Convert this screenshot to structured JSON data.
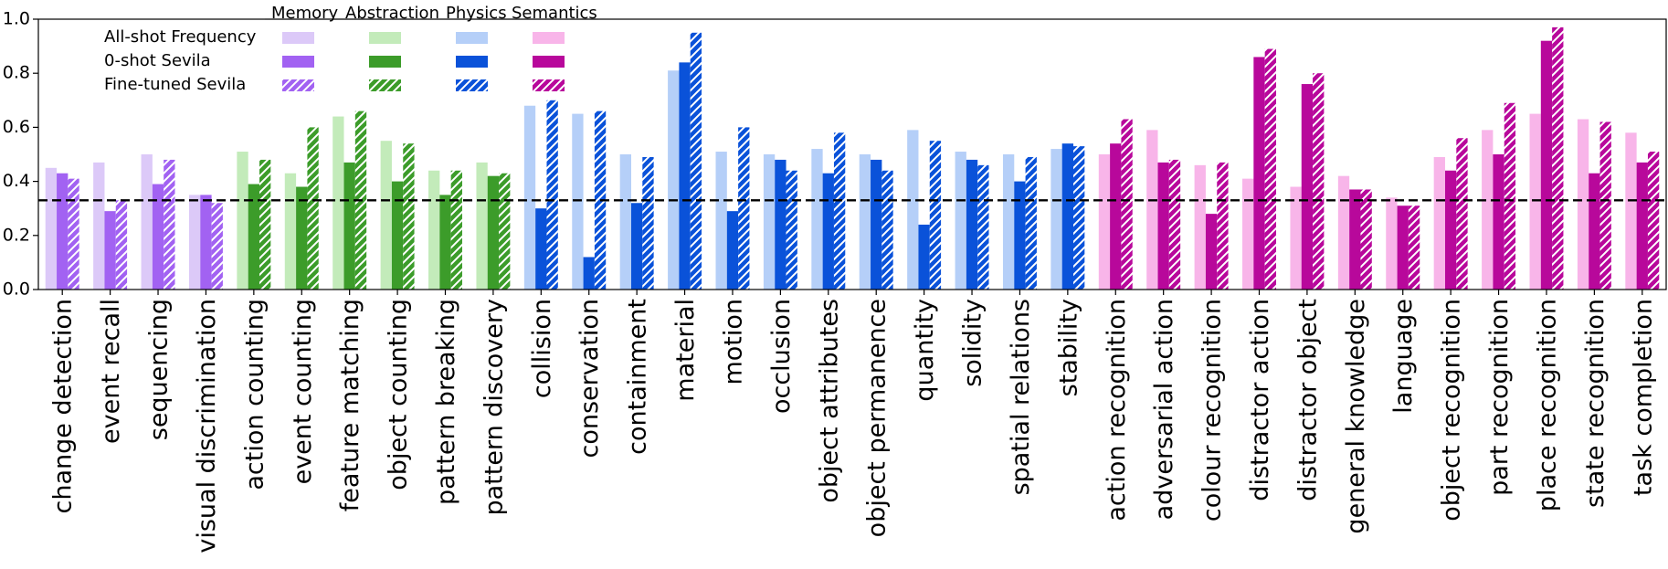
{
  "chart_data": {
    "type": "bar",
    "series": [
      {
        "name": "All-shot Frequency",
        "values": [
          0.45,
          0.47,
          0.5,
          0.35,
          0.51,
          0.43,
          0.64,
          0.55,
          0.44,
          0.47,
          0.68,
          0.65,
          0.5,
          0.81,
          0.51,
          0.5,
          0.52,
          0.5,
          0.59,
          0.51,
          0.5,
          0.52,
          0.5,
          0.59,
          0.46,
          0.41,
          0.38,
          0.42,
          0.34,
          0.49,
          0.59,
          0.65,
          0.63,
          0.58
        ]
      },
      {
        "name": "0-shot Sevila",
        "values": [
          0.43,
          0.29,
          0.39,
          0.35,
          0.39,
          0.38,
          0.47,
          0.4,
          0.35,
          0.42,
          0.3,
          0.12,
          0.32,
          0.84,
          0.29,
          0.48,
          0.43,
          0.48,
          0.24,
          0.48,
          0.4,
          0.54,
          0.54,
          0.47,
          0.28,
          0.86,
          0.76,
          0.37,
          0.31,
          0.44,
          0.5,
          0.92,
          0.43,
          0.47
        ]
      },
      {
        "name": "Fine-tuned Sevila",
        "values": [
          0.41,
          0.33,
          0.48,
          0.32,
          0.48,
          0.6,
          0.66,
          0.54,
          0.44,
          0.43,
          0.7,
          0.66,
          0.49,
          0.95,
          0.6,
          0.44,
          0.58,
          0.44,
          0.55,
          0.46,
          0.49,
          0.53,
          0.63,
          0.48,
          0.47,
          0.89,
          0.8,
          0.37,
          0.31,
          0.56,
          0.69,
          0.97,
          0.62,
          0.51
        ]
      }
    ],
    "groups": [
      {
        "name": "Memory",
        "colors": [
          "#dcc9f8",
          "#a262f2",
          "#a262f2"
        ],
        "categories": [
          "change detection",
          "event recall",
          "sequencing",
          "visual discrimination"
        ]
      },
      {
        "name": "Abstraction",
        "colors": [
          "#c3ebba",
          "#3c9c2a",
          "#3c9c2a"
        ],
        "categories": [
          "action counting",
          "event counting",
          "feature matching",
          "object counting",
          "pattern breaking",
          "pattern discovery"
        ]
      },
      {
        "name": "Physics",
        "colors": [
          "#b5cff8",
          "#0a52d9",
          "#0a52d9"
        ],
        "categories": [
          "collision",
          "conservation",
          "containment",
          "material",
          "motion",
          "occlusion",
          "object attributes",
          "object permanence",
          "quantity",
          "solidity",
          "spatial relations",
          "stability"
        ]
      },
      {
        "name": "Semantics",
        "colors": [
          "#f8b5e9",
          "#b8089b",
          "#b8089b"
        ],
        "categories": [
          "action recognition",
          "adversarial action",
          "colour recognition",
          "distractor action",
          "distractor object",
          "general knowledge",
          "language",
          "object recognition",
          "part recognition",
          "place recognition",
          "state recognition",
          "task completion"
        ]
      }
    ],
    "hatched_series": 2,
    "reference_line": 0.33,
    "ylim": [
      0,
      1
    ],
    "yticks": [
      {
        "value": 0,
        "label": "0.0"
      },
      0.2,
      0.4,
      0.6,
      0.8,
      {
        "value": 1,
        "label": "1.0"
      }
    ]
  }
}
